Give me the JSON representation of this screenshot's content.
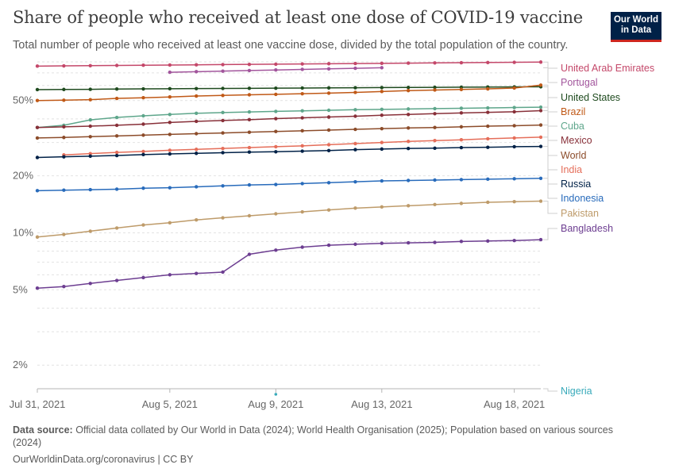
{
  "header": {
    "title": "Share of people who received at least one dose of COVID-19 vaccine",
    "subtitle": "Total number of people who received at least one vaccine dose, divided by the total population of the country.",
    "logo_line1": "Our World",
    "logo_line2": "in Data"
  },
  "footer": {
    "source_label": "Data source:",
    "source_text": "Official data collated by Our World in Data (2024); World Health Organisation (2025); Population based on various sources (2024)",
    "url": "OurWorldinData.org/coronavirus | CC BY"
  },
  "chart_data": {
    "type": "line",
    "y_scale": "log",
    "ylim": [
      1.5,
      80
    ],
    "y_ticks": [
      {
        "value": 2,
        "label": "2%"
      },
      {
        "value": 5,
        "label": "5%"
      },
      {
        "value": 10,
        "label": "10%"
      },
      {
        "value": 20,
        "label": "20%"
      },
      {
        "value": 50,
        "label": "50%"
      }
    ],
    "xlim": [
      "2021-07-31",
      "2021-08-19"
    ],
    "x_ticks": [
      {
        "date": "2021-07-31",
        "label": "Jul 31, 2021"
      },
      {
        "date": "2021-08-05",
        "label": "Aug 5, 2021"
      },
      {
        "date": "2021-08-09",
        "label": "Aug 9, 2021"
      },
      {
        "date": "2021-08-13",
        "label": "Aug 13, 2021"
      },
      {
        "date": "2021-08-18",
        "label": "Aug 18, 2021"
      }
    ],
    "grid": true,
    "legend": "right",
    "series": [
      {
        "name": "United Arab Emirates",
        "color": "#c4486a",
        "x": [
          "2021-07-31",
          "2021-08-01",
          "2021-08-02",
          "2021-08-03",
          "2021-08-04",
          "2021-08-05",
          "2021-08-06",
          "2021-08-07",
          "2021-08-08",
          "2021-08-09",
          "2021-08-10",
          "2021-08-11",
          "2021-08-12",
          "2021-08-13",
          "2021-08-14",
          "2021-08-15",
          "2021-08-16",
          "2021-08-17",
          "2021-08-18",
          "2021-08-19"
        ],
        "y": [
          76.0,
          76.2,
          76.4,
          76.6,
          76.8,
          77.0,
          77.2,
          77.4,
          77.6,
          77.8,
          78.0,
          78.2,
          78.4,
          78.6,
          78.8,
          79.0,
          79.2,
          79.4,
          79.6,
          79.8
        ]
      },
      {
        "name": "Portugal",
        "color": "#a2559c",
        "x": [
          "2021-08-05",
          "2021-08-06",
          "2021-08-07",
          "2021-08-08",
          "2021-08-09",
          "2021-08-10",
          "2021-08-11",
          "2021-08-12",
          "2021-08-13"
        ],
        "y": [
          70.5,
          71.0,
          71.5,
          72.0,
          72.5,
          73.0,
          73.5,
          74.0,
          74.5
        ]
      },
      {
        "name": "United States",
        "color": "#1f4b1f",
        "x": [
          "2021-07-31",
          "2021-08-01",
          "2021-08-02",
          "2021-08-03",
          "2021-08-04",
          "2021-08-05",
          "2021-08-06",
          "2021-08-07",
          "2021-08-08",
          "2021-08-09",
          "2021-08-10",
          "2021-08-11",
          "2021-08-12",
          "2021-08-13",
          "2021-08-14",
          "2021-08-15",
          "2021-08-16",
          "2021-08-17",
          "2021-08-18",
          "2021-08-19"
        ],
        "y": [
          57.1,
          57.2,
          57.3,
          57.5,
          57.6,
          57.7,
          57.8,
          57.9,
          58.0,
          58.1,
          58.2,
          58.3,
          58.4,
          58.5,
          58.6,
          58.7,
          58.8,
          58.9,
          59.0,
          59.1
        ]
      },
      {
        "name": "Brazil",
        "color": "#c05917",
        "x": [
          "2021-07-31",
          "2021-08-01",
          "2021-08-02",
          "2021-08-03",
          "2021-08-04",
          "2021-08-05",
          "2021-08-06",
          "2021-08-07",
          "2021-08-08",
          "2021-08-09",
          "2021-08-10",
          "2021-08-11",
          "2021-08-12",
          "2021-08-13",
          "2021-08-14",
          "2021-08-15",
          "2021-08-16",
          "2021-08-17",
          "2021-08-18",
          "2021-08-19"
        ],
        "y": [
          50.0,
          50.2,
          50.5,
          51.3,
          51.7,
          52.2,
          52.8,
          53.2,
          53.6,
          53.9,
          54.3,
          54.7,
          55.2,
          55.8,
          56.4,
          56.8,
          57.2,
          57.6,
          58.2,
          60.3
        ]
      },
      {
        "name": "Cuba",
        "color": "#5ea68b",
        "x": [
          "2021-07-31",
          "2021-08-01",
          "2021-08-02",
          "2021-08-03",
          "2021-08-04",
          "2021-08-05",
          "2021-08-06",
          "2021-08-07",
          "2021-08-08",
          "2021-08-09",
          "2021-08-10",
          "2021-08-11",
          "2021-08-12",
          "2021-08-13",
          "2021-08-14",
          "2021-08-15",
          "2021-08-16",
          "2021-08-17",
          "2021-08-18",
          "2021-08-19"
        ],
        "y": [
          36.0,
          37.0,
          39.5,
          40.7,
          41.5,
          42.2,
          42.8,
          43.2,
          43.5,
          43.8,
          44.1,
          44.4,
          44.7,
          44.9,
          45.1,
          45.3,
          45.5,
          45.7,
          45.9,
          46.1
        ]
      },
      {
        "name": "Mexico",
        "color": "#883039",
        "x": [
          "2021-07-31",
          "2021-08-01",
          "2021-08-02",
          "2021-08-03",
          "2021-08-04",
          "2021-08-05",
          "2021-08-06",
          "2021-08-07",
          "2021-08-08",
          "2021-08-09",
          "2021-08-10",
          "2021-08-11",
          "2021-08-12",
          "2021-08-13",
          "2021-08-14",
          "2021-08-15",
          "2021-08-16",
          "2021-08-17",
          "2021-08-18",
          "2021-08-19"
        ],
        "y": [
          36.0,
          36.3,
          36.6,
          37.0,
          37.5,
          38.3,
          38.8,
          39.2,
          39.6,
          40.1,
          40.5,
          40.9,
          41.3,
          41.8,
          42.2,
          42.6,
          43.0,
          43.3,
          43.6,
          44.2
        ]
      },
      {
        "name": "World",
        "color": "#8c4c2a",
        "x": [
          "2021-07-31",
          "2021-08-01",
          "2021-08-02",
          "2021-08-03",
          "2021-08-04",
          "2021-08-05",
          "2021-08-06",
          "2021-08-07",
          "2021-08-08",
          "2021-08-09",
          "2021-08-10",
          "2021-08-11",
          "2021-08-12",
          "2021-08-13",
          "2021-08-14",
          "2021-08-15",
          "2021-08-16",
          "2021-08-17",
          "2021-08-18",
          "2021-08-19"
        ],
        "y": [
          31.7,
          31.9,
          32.2,
          32.5,
          32.8,
          33.1,
          33.4,
          33.7,
          34.0,
          34.3,
          34.6,
          34.9,
          35.2,
          35.5,
          35.8,
          36.0,
          36.3,
          36.6,
          36.8,
          37.1
        ]
      },
      {
        "name": "India",
        "color": "#e56e5a",
        "x": [
          "2021-08-01",
          "2021-08-02",
          "2021-08-03",
          "2021-08-04",
          "2021-08-05",
          "2021-08-06",
          "2021-08-07",
          "2021-08-08",
          "2021-08-09",
          "2021-08-10",
          "2021-08-11",
          "2021-08-12",
          "2021-08-13",
          "2021-08-14",
          "2021-08-15",
          "2021-08-16",
          "2021-08-17",
          "2021-08-18",
          "2021-08-19"
        ],
        "y": [
          25.8,
          26.2,
          26.6,
          26.9,
          27.3,
          27.6,
          27.9,
          28.2,
          28.5,
          28.8,
          29.2,
          29.6,
          30.0,
          30.4,
          30.7,
          31.0,
          31.4,
          31.7,
          32.0
        ]
      },
      {
        "name": "Russia",
        "color": "#002147",
        "x": [
          "2021-07-31",
          "2021-08-01",
          "2021-08-02",
          "2021-08-03",
          "2021-08-04",
          "2021-08-05",
          "2021-08-06",
          "2021-08-07",
          "2021-08-08",
          "2021-08-09",
          "2021-08-10",
          "2021-08-11",
          "2021-08-12",
          "2021-08-13",
          "2021-08-14",
          "2021-08-15",
          "2021-08-16",
          "2021-08-17",
          "2021-08-18",
          "2021-08-19"
        ],
        "y": [
          25.0,
          25.2,
          25.4,
          25.6,
          25.9,
          26.1,
          26.3,
          26.5,
          26.7,
          26.8,
          27.0,
          27.2,
          27.5,
          27.7,
          27.9,
          28.0,
          28.2,
          28.3,
          28.5,
          28.6
        ]
      },
      {
        "name": "Indonesia",
        "color": "#286bbb",
        "x": [
          "2021-07-31",
          "2021-08-01",
          "2021-08-02",
          "2021-08-03",
          "2021-08-04",
          "2021-08-05",
          "2021-08-06",
          "2021-08-07",
          "2021-08-08",
          "2021-08-09",
          "2021-08-10",
          "2021-08-11",
          "2021-08-12",
          "2021-08-13",
          "2021-08-14",
          "2021-08-15",
          "2021-08-16",
          "2021-08-17",
          "2021-08-18",
          "2021-08-19"
        ],
        "y": [
          16.7,
          16.8,
          16.9,
          17.0,
          17.2,
          17.3,
          17.5,
          17.7,
          17.9,
          18.0,
          18.2,
          18.4,
          18.6,
          18.8,
          18.9,
          19.0,
          19.1,
          19.2,
          19.3,
          19.4
        ]
      },
      {
        "name": "Pakistan",
        "color": "#be9b6a",
        "x": [
          "2021-07-31",
          "2021-08-01",
          "2021-08-02",
          "2021-08-03",
          "2021-08-04",
          "2021-08-05",
          "2021-08-06",
          "2021-08-07",
          "2021-08-08",
          "2021-08-09",
          "2021-08-10",
          "2021-08-11",
          "2021-08-12",
          "2021-08-13",
          "2021-08-14",
          "2021-08-15",
          "2021-08-16",
          "2021-08-17",
          "2021-08-18",
          "2021-08-19"
        ],
        "y": [
          9.5,
          9.8,
          10.2,
          10.6,
          11.0,
          11.3,
          11.7,
          12.0,
          12.3,
          12.6,
          12.9,
          13.2,
          13.5,
          13.7,
          13.9,
          14.1,
          14.3,
          14.5,
          14.6,
          14.7
        ]
      },
      {
        "name": "Bangladesh",
        "color": "#6d3e91",
        "x": [
          "2021-07-31",
          "2021-08-01",
          "2021-08-02",
          "2021-08-03",
          "2021-08-04",
          "2021-08-05",
          "2021-08-06",
          "2021-08-07",
          "2021-08-08",
          "2021-08-09",
          "2021-08-10",
          "2021-08-11",
          "2021-08-12",
          "2021-08-13",
          "2021-08-14",
          "2021-08-15",
          "2021-08-16",
          "2021-08-17",
          "2021-08-18",
          "2021-08-19"
        ],
        "y": [
          5.1,
          5.2,
          5.4,
          5.6,
          5.8,
          6.0,
          6.1,
          6.2,
          7.7,
          8.1,
          8.4,
          8.6,
          8.7,
          8.8,
          8.85,
          8.9,
          9.0,
          9.05,
          9.1,
          9.2
        ]
      },
      {
        "name": "Nigeria",
        "color": "#38aaba",
        "x": [
          "2021-08-09"
        ],
        "y": [
          1.42
        ]
      }
    ]
  }
}
